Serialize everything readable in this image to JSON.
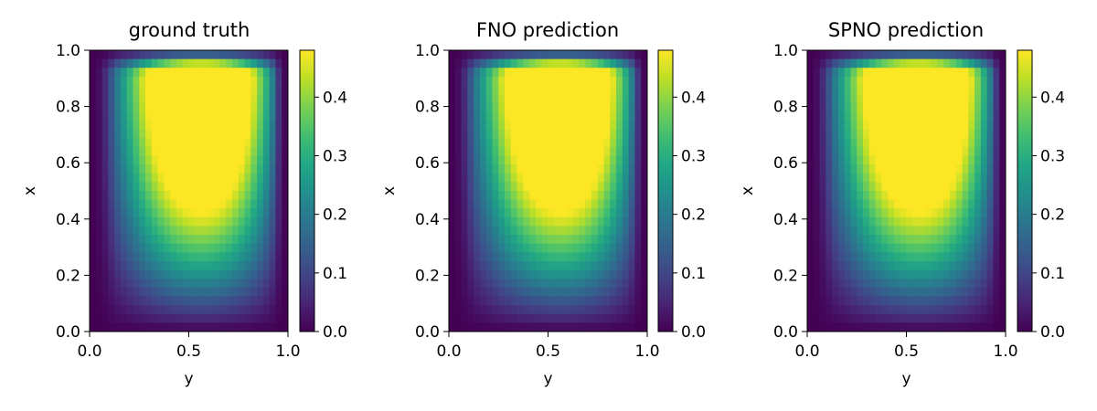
{
  "chart_data": [
    {
      "type": "heatmap",
      "title": "ground truth",
      "xlabel": "y",
      "ylabel": "x",
      "xlim": [
        0.0,
        1.0
      ],
      "ylim": [
        0.0,
        1.0
      ],
      "xticks": [
        "0.0",
        "0.5",
        "1.0"
      ],
      "yticks": [
        "0.0",
        "0.2",
        "0.4",
        "0.6",
        "0.8",
        "1.0"
      ],
      "colorbar": {
        "range": [
          0.0,
          0.48
        ],
        "ticks": [
          "0.0",
          "0.1",
          "0.2",
          "0.3",
          "0.4"
        ],
        "colormap": "viridis"
      },
      "grid": {
        "rows": 32,
        "cols": 32
      },
      "field": {
        "peak_y": 0.82,
        "peak_x": 0.9,
        "peak_value": 0.48
      }
    },
    {
      "type": "heatmap",
      "title": "FNO prediction",
      "xlabel": "y",
      "ylabel": "x",
      "xlim": [
        0.0,
        1.0
      ],
      "ylim": [
        0.0,
        1.0
      ],
      "xticks": [
        "0.0",
        "0.5",
        "1.0"
      ],
      "yticks": [
        "0.0",
        "0.2",
        "0.4",
        "0.6",
        "0.8",
        "1.0"
      ],
      "colorbar": {
        "range": [
          0.0,
          0.48
        ],
        "ticks": [
          "0.0",
          "0.1",
          "0.2",
          "0.3",
          "0.4"
        ],
        "colormap": "viridis"
      },
      "grid": {
        "rows": 32,
        "cols": 32
      },
      "field": {
        "peak_y": 0.82,
        "peak_x": 0.9,
        "peak_value": 0.48
      }
    },
    {
      "type": "heatmap",
      "title": "SPNO prediction",
      "xlabel": "y",
      "ylabel": "x",
      "xlim": [
        0.0,
        1.0
      ],
      "ylim": [
        0.0,
        1.0
      ],
      "xticks": [
        "0.0",
        "0.5",
        "1.0"
      ],
      "yticks": [
        "0.0",
        "0.2",
        "0.4",
        "0.6",
        "0.8",
        "1.0"
      ],
      "colorbar": {
        "range": [
          0.0,
          0.48
        ],
        "ticks": [
          "0.0",
          "0.1",
          "0.2",
          "0.3",
          "0.4"
        ],
        "colormap": "viridis"
      },
      "grid": {
        "rows": 32,
        "cols": 32
      },
      "field": {
        "peak_y": 0.82,
        "peak_x": 0.9,
        "peak_value": 0.48
      }
    }
  ]
}
